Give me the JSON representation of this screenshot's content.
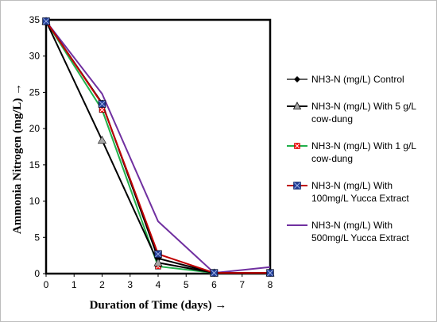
{
  "chart_data": {
    "type": "line",
    "xlabel": "Duration of Time (days) →",
    "ylabel": "Ammonia Nitrogen  (mg/L) →",
    "xlim": [
      0,
      8
    ],
    "ylim": [
      0,
      35
    ],
    "xticks": [
      0,
      1,
      2,
      3,
      4,
      5,
      6,
      7,
      8
    ],
    "yticks": [
      0,
      5,
      10,
      15,
      20,
      25,
      30,
      35
    ],
    "grid": false,
    "legend_position": "right",
    "series": [
      {
        "name": "NH3-N (mg/L) Control",
        "color": "#000000",
        "marker": "diamond",
        "marker_color": "#000000",
        "x": [
          0,
          2,
          4,
          6,
          8
        ],
        "y": [
          34.8,
          23.5,
          2.1,
          0.1,
          0.1
        ]
      },
      {
        "name": "NH3-N (mg/L) With 5 g/L cow-dung",
        "color": "#000000",
        "marker": "triangle",
        "marker_color": "#a6a6a6",
        "x": [
          0,
          2,
          4,
          6,
          8
        ],
        "y": [
          34.8,
          18.4,
          1.5,
          0.1,
          0.1
        ]
      },
      {
        "name": "NH3-N (mg/L)  With 1 g/L cow-dung",
        "color": "#22b14c",
        "marker": "square-x",
        "marker_color": "#ff0000",
        "x": [
          0,
          2,
          4,
          6,
          8
        ],
        "y": [
          34.8,
          22.6,
          1.0,
          0.1,
          0.1
        ]
      },
      {
        "name": "NH3-N (mg/L) With 100mg/L Yucca Extract",
        "color": "#c00000",
        "marker": "square-x",
        "marker_color": "#1f3a93",
        "x": [
          0,
          2,
          4,
          6,
          8
        ],
        "y": [
          34.8,
          23.4,
          2.7,
          0.1,
          0.1
        ]
      },
      {
        "name": "NH3-N (mg/L) With 500mg/L Yucca Extract",
        "color": "#7030a0",
        "marker": "none",
        "marker_color": "#7030a0",
        "x": [
          0,
          2,
          4,
          6,
          8
        ],
        "y": [
          34.8,
          24.8,
          7.2,
          0.1,
          0.9
        ]
      }
    ]
  }
}
